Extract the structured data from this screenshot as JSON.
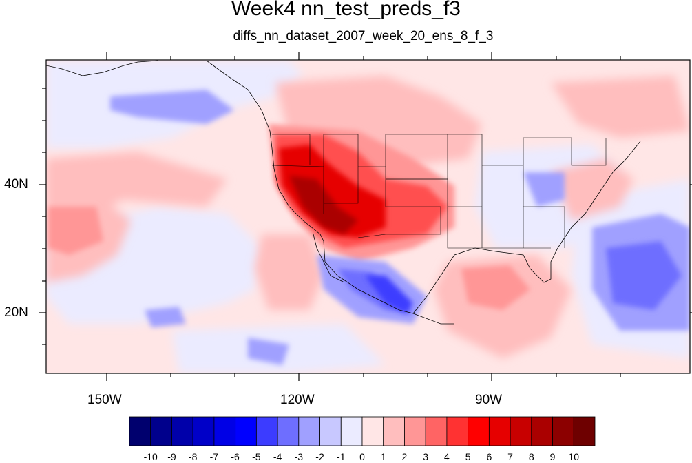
{
  "title": "Week4 nn_test_preds_f3",
  "subtitle": "diffs_nn_dataset_2007_week_20_ens_8_f_3",
  "lon_labels": [
    "150W",
    "120W",
    "90W"
  ],
  "lat_labels": [
    "40N",
    "20N"
  ],
  "colorbar": {
    "labels": [
      "-10",
      "-9",
      "-8",
      "-7",
      "-6",
      "-5",
      "-4",
      "-3",
      "-2",
      "-1",
      "0",
      "1",
      "2",
      "3",
      "4",
      "5",
      "6",
      "7",
      "8",
      "9",
      "10"
    ],
    "colors": [
      "#00006e",
      "#00008c",
      "#0000aa",
      "#0000c8",
      "#0000e6",
      "#0000ff",
      "#3c3cff",
      "#6e6eff",
      "#a0a0ff",
      "#c8c8ff",
      "#ebebff",
      "#ffe6e6",
      "#ffbebe",
      "#ff9696",
      "#ff6464",
      "#ff3232",
      "#ff0000",
      "#e60000",
      "#c80000",
      "#aa0000",
      "#8c0000",
      "#6e0000"
    ]
  },
  "map": {
    "region": "Contiguous United States and adjacent Pacific / Gulf of Mexico",
    "field": "temperature difference",
    "warm_anomaly_center": "southwestern United States",
    "cool_anomaly_areas": [
      "northwestern Mexico",
      "Ohio Valley",
      "western Atlantic"
    ]
  }
}
